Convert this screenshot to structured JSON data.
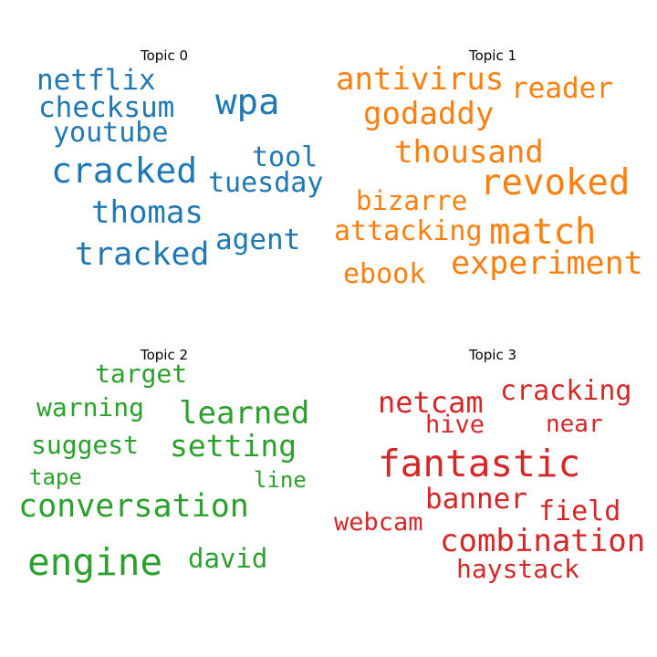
{
  "chart_data": [
    {
      "type": "wordcloud",
      "title": "Topic 0",
      "color": "#1f77b4",
      "words": [
        {
          "text": "netflix",
          "weight": 0.55
        },
        {
          "text": "checksum",
          "weight": 0.55
        },
        {
          "text": "youtube",
          "weight": 0.52
        },
        {
          "text": "wpa",
          "weight": 0.7
        },
        {
          "text": "tool",
          "weight": 0.52
        },
        {
          "text": "cracked",
          "weight": 0.72
        },
        {
          "text": "tuesday",
          "weight": 0.53
        },
        {
          "text": "thomas",
          "weight": 0.62
        },
        {
          "text": "agent",
          "weight": 0.55
        },
        {
          "text": "tracked",
          "weight": 0.66
        }
      ]
    },
    {
      "type": "wordcloud",
      "title": "Topic 1",
      "color": "#ff7f0e",
      "words": [
        {
          "text": "antivirus",
          "weight": 0.6
        },
        {
          "text": "reader",
          "weight": 0.56
        },
        {
          "text": "godaddy",
          "weight": 0.6
        },
        {
          "text": "thousand",
          "weight": 0.63
        },
        {
          "text": "revoked",
          "weight": 0.7
        },
        {
          "text": "bizarre",
          "weight": 0.55
        },
        {
          "text": "attacking",
          "weight": 0.55
        },
        {
          "text": "match",
          "weight": 0.68
        },
        {
          "text": "experiment",
          "weight": 0.64
        },
        {
          "text": "ebook",
          "weight": 0.55
        }
      ]
    },
    {
      "type": "wordcloud",
      "title": "Topic 2",
      "color": "#2ca02c",
      "words": [
        {
          "text": "target",
          "weight": 0.5
        },
        {
          "text": "warning",
          "weight": 0.53
        },
        {
          "text": "learned",
          "weight": 0.62
        },
        {
          "text": "suggest",
          "weight": 0.53
        },
        {
          "text": "setting",
          "weight": 0.62
        },
        {
          "text": "tape",
          "weight": 0.45
        },
        {
          "text": "line",
          "weight": 0.45
        },
        {
          "text": "conversation",
          "weight": 0.7
        },
        {
          "text": "engine",
          "weight": 0.75
        },
        {
          "text": "david",
          "weight": 0.52
        }
      ]
    },
    {
      "type": "wordcloud",
      "title": "Topic 3",
      "color": "#d62728",
      "words": [
        {
          "text": "netcam",
          "weight": 0.62
        },
        {
          "text": "cracking",
          "weight": 0.57
        },
        {
          "text": "hive",
          "weight": 0.52
        },
        {
          "text": "near",
          "weight": 0.52
        },
        {
          "text": "fantastic",
          "weight": 0.78
        },
        {
          "text": "banner",
          "weight": 0.6
        },
        {
          "text": "field",
          "weight": 0.56
        },
        {
          "text": "webcam",
          "weight": 0.52
        },
        {
          "text": "combination",
          "weight": 0.64
        },
        {
          "text": "haystack",
          "weight": 0.56
        }
      ]
    }
  ]
}
